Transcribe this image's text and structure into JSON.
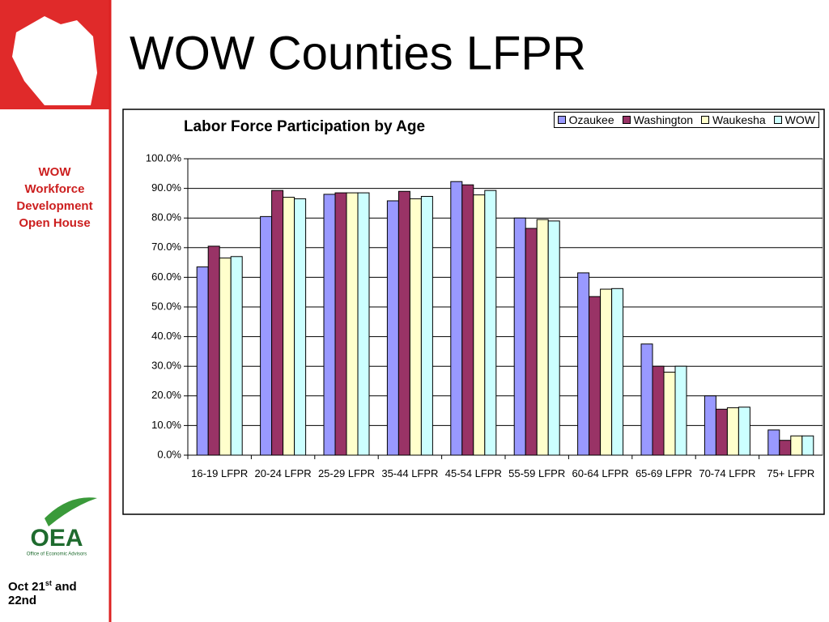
{
  "slide": {
    "title": "WOW Counties LFPR",
    "sidebar_lines": [
      "WOW",
      "Workforce",
      "Development",
      "Open House"
    ],
    "logo": {
      "name": "OEA",
      "subtitle": "Office of Economic Advisors"
    },
    "footer": {
      "date": "Oct 21",
      "suffix": "st",
      "rest": "and 22nd"
    }
  },
  "chart_data": {
    "type": "bar",
    "title": "Labor Force Participation by Age",
    "categories": [
      "16-19 LFPR",
      "20-24 LFPR",
      "25-29 LFPR",
      "35-44 LFPR",
      "45-54 LFPR",
      "55-59 LFPR",
      "60-64 LFPR",
      "65-69 LFPR",
      "70-74 LFPR",
      "75+ LFPR"
    ],
    "series": [
      {
        "name": "Ozaukee",
        "color": "#9999ff",
        "values": [
          63.5,
          80.5,
          88,
          85.8,
          92.3,
          80,
          61.5,
          37.5,
          20,
          8.5
        ]
      },
      {
        "name": "Washington",
        "color": "#993366",
        "values": [
          70.5,
          89.3,
          88.5,
          89,
          91.2,
          76.5,
          53.5,
          30,
          15.5,
          5
        ]
      },
      {
        "name": "Waukesha",
        "color": "#ffffcc",
        "values": [
          66.5,
          87,
          88.5,
          86.5,
          87.8,
          79.5,
          56,
          28,
          16,
          6.5
        ]
      },
      {
        "name": "WOW",
        "color": "#ccffff",
        "values": [
          67,
          86.5,
          88.5,
          87.3,
          89.3,
          79,
          56.2,
          30,
          16.2,
          6.5
        ]
      }
    ],
    "ylim": [
      0,
      100
    ],
    "yticks": [
      {
        "value": 0,
        "label": "0.0%"
      },
      {
        "value": 10,
        "label": "10.0%"
      },
      {
        "value": 20,
        "label": "20.0%"
      },
      {
        "value": 30,
        "label": "30.0%"
      },
      {
        "value": 40,
        "label": "40.0%"
      },
      {
        "value": 50,
        "label": "50.0%"
      },
      {
        "value": 60,
        "label": "60.0%"
      },
      {
        "value": 70,
        "label": "70.0%"
      },
      {
        "value": 80,
        "label": "80.0%"
      },
      {
        "value": 90,
        "label": "90.0%"
      },
      {
        "value": 100,
        "label": "100.0%"
      }
    ],
    "grid": true,
    "legend": "top-right"
  }
}
